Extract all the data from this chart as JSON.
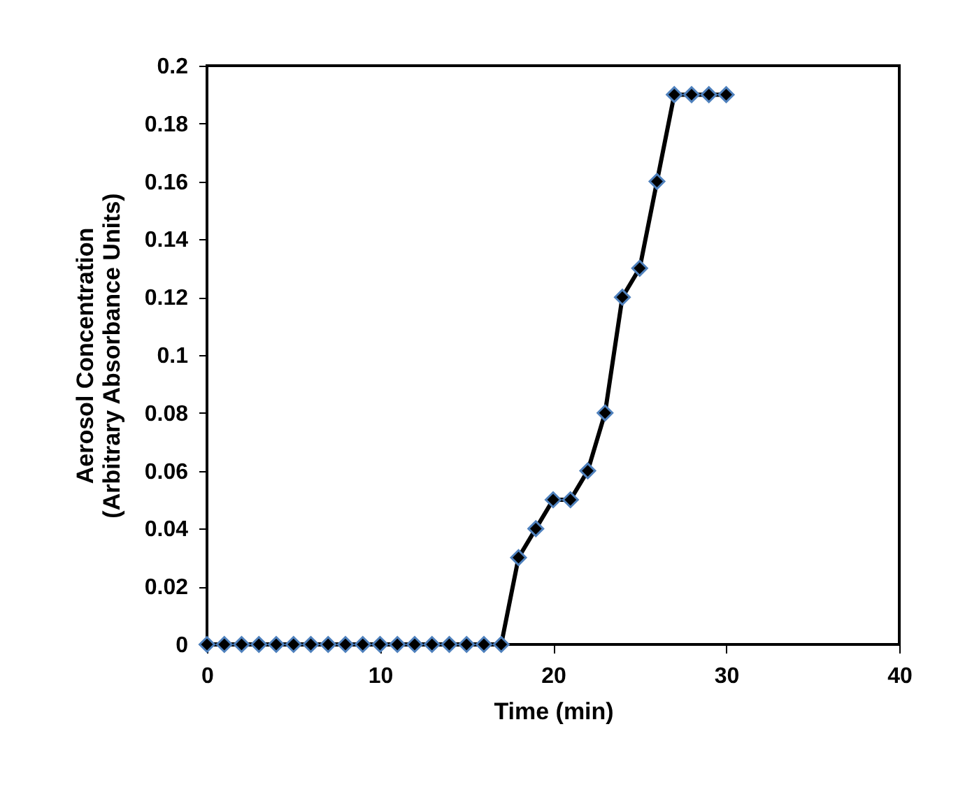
{
  "chart_data": {
    "type": "line",
    "xlabel": "Time (min)",
    "ylabel": "Aerosol Concentration\n(Arbitrary Absorbance Units)",
    "x": [
      0,
      1,
      2,
      3,
      4,
      5,
      6,
      7,
      8,
      9,
      10,
      11,
      12,
      13,
      14,
      15,
      16,
      17,
      18,
      19,
      20,
      21,
      22,
      23,
      24,
      25,
      26,
      27,
      28,
      29,
      30
    ],
    "series": [
      {
        "color": "#000000",
        "values": [
          0,
          0,
          0,
          0,
          0,
          0,
          0,
          0,
          0,
          0,
          0,
          0,
          0,
          0,
          0,
          0,
          0,
          0,
          0.03,
          0.04,
          0.05,
          0.05,
          0.06,
          0.08,
          0.12,
          0.13,
          0.16,
          0.19,
          0.19,
          0.19,
          0.19
        ]
      }
    ],
    "xlim": [
      0,
      40
    ],
    "xticks": [
      0,
      10,
      20,
      30,
      40
    ],
    "ylim": [
      0,
      0.2
    ],
    "yticks": [
      0,
      0.02,
      0.04,
      0.06,
      0.08,
      0.1,
      0.12,
      0.14,
      0.16,
      0.18,
      0.2
    ],
    "marker": "diamond",
    "line_style": "solid"
  }
}
